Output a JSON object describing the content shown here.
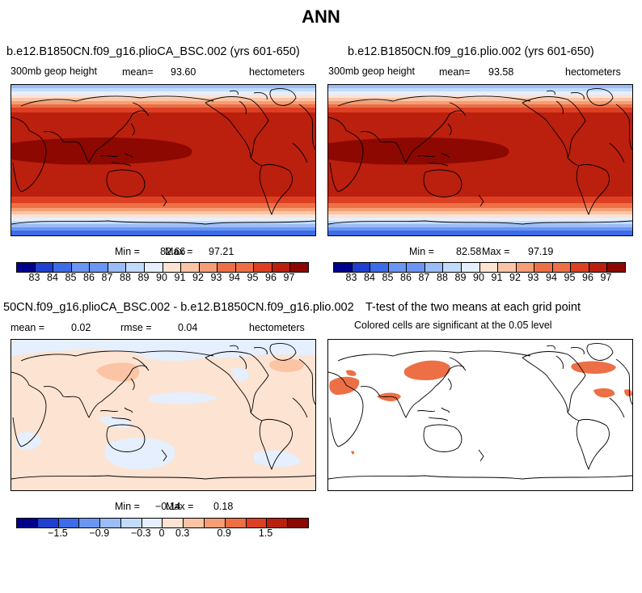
{
  "title": "ANN",
  "palette": [
    "#00008b",
    "#1e3fd0",
    "#3d6ce8",
    "#6b95f2",
    "#9bbdf7",
    "#c3dbfb",
    "#e5effd",
    "#fde3d2",
    "#fbc4a5",
    "#f59d74",
    "#ec6f46",
    "#dc3f22",
    "#bb1f0d",
    "#8c0800"
  ],
  "chart_data": [
    {
      "type": "heatmap",
      "case": "b.e12.B1850CN.f09_g16.plioCA_BSC.002 (yrs 601-650)",
      "variable": "300mb geop height",
      "mean_label": "mean=",
      "mean": "93.60",
      "units": "hectometers",
      "min_label": "Min =",
      "min": "82.66",
      "max_label": "Max =",
      "max": "97.21",
      "levels": [
        "83",
        "84",
        "85",
        "86",
        "87",
        "88",
        "89",
        "90",
        "91",
        "92",
        "93",
        "94",
        "95",
        "96",
        "97"
      ]
    },
    {
      "type": "heatmap",
      "case": "b.e12.B1850CN.f09_g16.plio.002 (yrs 601-650)",
      "variable": "300mb geop height",
      "mean_label": "mean=",
      "mean": "93.58",
      "units": "hectometers",
      "min_label": "Min =",
      "min": "82.58",
      "max_label": "Max =",
      "max": "97.19",
      "levels": [
        "83",
        "84",
        "85",
        "86",
        "87",
        "88",
        "89",
        "90",
        "91",
        "92",
        "93",
        "94",
        "95",
        "96",
        "97"
      ]
    },
    {
      "type": "heatmap",
      "case": "50CN.f09_g16.plioCA_BSC.002 - b.e12.B1850CN.f09_g16.plio.002",
      "mean_label": "mean =",
      "mean": "0.02",
      "rmse_label": "rmse =",
      "rmse": "0.04",
      "units": "hectometers",
      "min_label": "Min =",
      "min": "−0.14",
      "max_label": "Max =",
      "max": "0.18",
      "levels": [
        "−1.5",
        "−0.9",
        "−0.3",
        "0",
        "0.3",
        "0.9",
        "1.5"
      ]
    },
    {
      "type": "heatmap",
      "case": "T-test of the two means at each grid point",
      "subtitle": "Colored cells are significant at the 0.05 level"
    }
  ]
}
